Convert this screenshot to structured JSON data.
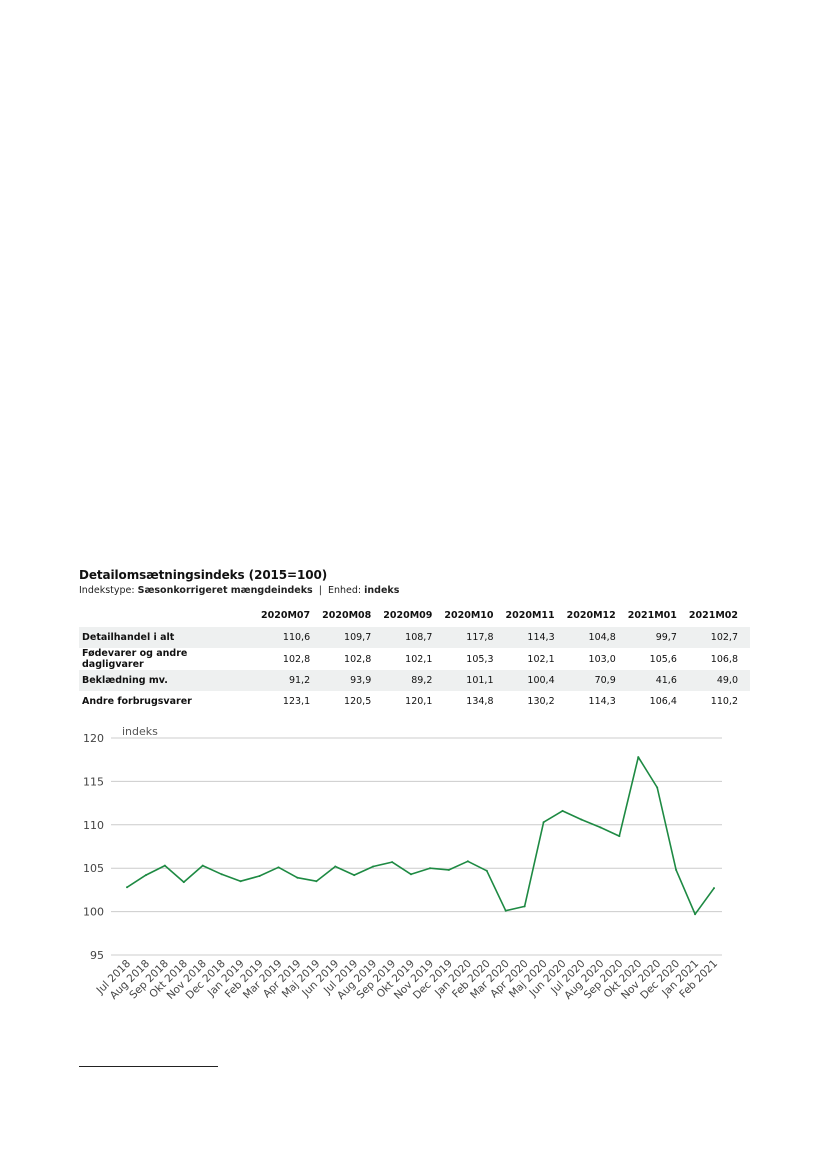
{
  "table": {
    "title": "Detailomsætningsindeks (2015=100)",
    "subtitle_label1": "Indekstype:",
    "subtitle_value1": "Sæsonkorrigeret mængdeindeks",
    "subtitle_sep": "|",
    "subtitle_label2": "Enhed:",
    "subtitle_value2": "indeks",
    "columns": [
      "2020M07",
      "2020M08",
      "2020M09",
      "2020M10",
      "2020M11",
      "2020M12",
      "2021M01",
      "2021M02"
    ],
    "rows": [
      {
        "label": "Detailhandel i alt",
        "values": [
          "110,6",
          "109,7",
          "108,7",
          "117,8",
          "114,3",
          "104,8",
          "99,7",
          "102,7"
        ]
      },
      {
        "label": "Fødevarer og andre dagligvarer",
        "values": [
          "102,8",
          "102,8",
          "102,1",
          "105,3",
          "102,1",
          "103,0",
          "105,6",
          "106,8"
        ]
      },
      {
        "label": "Beklædning mv.",
        "values": [
          "91,2",
          "93,9",
          "89,2",
          "101,1",
          "100,4",
          "70,9",
          "41,6",
          "49,0"
        ]
      },
      {
        "label": "Andre forbrugsvarer",
        "values": [
          "123,1",
          "120,5",
          "120,1",
          "134,8",
          "130,2",
          "114,3",
          "106,4",
          "110,2"
        ]
      }
    ]
  },
  "chart_data": {
    "type": "line",
    "ylabel": "indeks",
    "ylim": [
      95,
      120
    ],
    "yticks": [
      95,
      100,
      105,
      110,
      115,
      120
    ],
    "grid": true,
    "line_color": "#1e8a43",
    "grid_color": "#cccccc",
    "x": [
      "Jul 2018",
      "Aug 2018",
      "Sep 2018",
      "Okt 2018",
      "Nov 2018",
      "Dec 2018",
      "Jan 2019",
      "Feb 2019",
      "Mar 2019",
      "Apr 2019",
      "Maj 2019",
      "Jun 2019",
      "Jul 2019",
      "Aug 2019",
      "Sep 2019",
      "Okt 2019",
      "Nov 2019",
      "Dec 2019",
      "Jan 2020",
      "Feb 2020",
      "Mar 2020",
      "Apr 2020",
      "Maj 2020",
      "Jun 2020",
      "Jul 2020",
      "Aug 2020",
      "Sep 2020",
      "Okt 2020",
      "Nov 2020",
      "Dec 2020",
      "Jan 2021",
      "Feb 2021"
    ],
    "series": [
      {
        "values": [
          102.8,
          104.2,
          105.3,
          103.4,
          105.3,
          104.3,
          103.5,
          104.1,
          105.1,
          103.9,
          103.5,
          105.2,
          104.2,
          105.2,
          105.7,
          104.3,
          105.0,
          104.8,
          105.8,
          104.7,
          100.1,
          100.6,
          110.3,
          111.6,
          110.6,
          109.7,
          108.7,
          117.8,
          114.3,
          104.8,
          99.7,
          102.7
        ]
      }
    ]
  }
}
